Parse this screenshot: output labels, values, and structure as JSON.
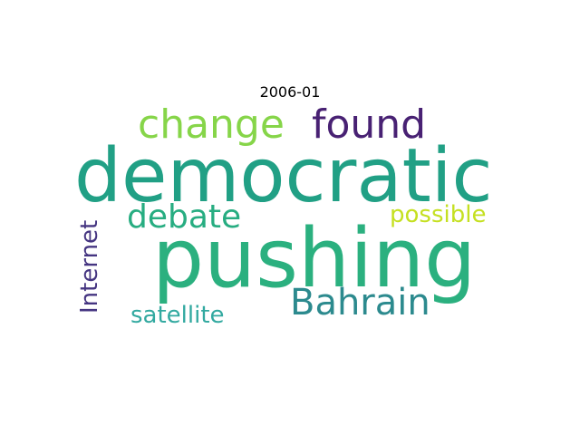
{
  "title": "2006-01",
  "words": {
    "pushing": {
      "text": "pushing",
      "color": "#2bb07f"
    },
    "democratic": {
      "text": "democratic",
      "color": "#21a085"
    },
    "change": {
      "text": "change",
      "color": "#86d549"
    },
    "found": {
      "text": "found",
      "color": "#482173"
    },
    "bahrain": {
      "text": "Bahrain",
      "color": "#2c8a8e"
    },
    "debate": {
      "text": "debate",
      "color": "#27ad81"
    },
    "possible": {
      "text": "possible",
      "color": "#c5e021"
    },
    "satellite": {
      "text": "satellite",
      "color": "#32a9a0"
    },
    "internet": {
      "text": "Internet",
      "color": "#453581"
    }
  }
}
